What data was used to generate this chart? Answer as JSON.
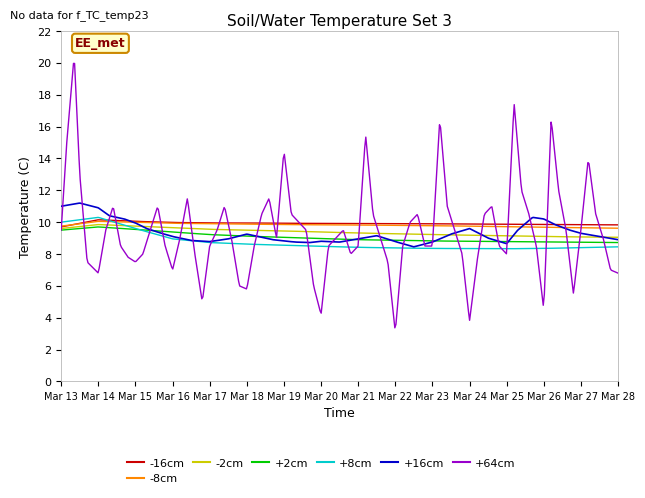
{
  "title": "Soil/Water Temperature Set 3",
  "subtitle": "No data for f_TC_temp23",
  "xlabel": "Time",
  "ylabel": "Temperature (C)",
  "ylim": [
    0,
    22
  ],
  "yticks": [
    0,
    2,
    4,
    6,
    8,
    10,
    12,
    14,
    16,
    18,
    20,
    22
  ],
  "bg_color": "#ffffff",
  "grid_color": "#dddddd",
  "annotation_text": "EE_met",
  "annotation_bg": "#ffffcc",
  "annotation_border": "#cc8800",
  "series_order": [
    "-16cm",
    "-8cm",
    "-2cm",
    "+2cm",
    "+8cm",
    "+16cm",
    "+64cm"
  ],
  "series": {
    "-16cm": {
      "color": "#cc0000",
      "linewidth": 1.0
    },
    "-8cm": {
      "color": "#ff8800",
      "linewidth": 1.0
    },
    "-2cm": {
      "color": "#cccc00",
      "linewidth": 1.0
    },
    "+2cm": {
      "color": "#00cc00",
      "linewidth": 1.0
    },
    "+8cm": {
      "color": "#00cccc",
      "linewidth": 1.0
    },
    "+16cm": {
      "color": "#0000cc",
      "linewidth": 1.2
    },
    "+64cm": {
      "color": "#9900cc",
      "linewidth": 1.0
    }
  },
  "x_days": [
    13,
    14,
    15,
    16,
    17,
    18,
    19,
    20,
    21,
    22,
    23,
    24,
    25,
    26,
    27,
    28
  ],
  "s16neg": [
    9.7,
    10.15,
    10.05,
    9.98,
    9.95,
    9.95,
    9.93,
    9.92,
    9.91,
    9.9,
    9.9,
    9.88,
    9.87,
    9.86,
    9.84,
    9.83
  ],
  "s8neg": [
    9.75,
    10.05,
    10.0,
    9.93,
    9.9,
    9.88,
    9.85,
    9.83,
    9.82,
    9.8,
    9.78,
    9.75,
    9.72,
    9.68,
    9.65,
    9.62
  ],
  "s2neg": [
    9.6,
    9.85,
    9.75,
    9.65,
    9.55,
    9.5,
    9.45,
    9.38,
    9.32,
    9.27,
    9.22,
    9.18,
    9.14,
    9.1,
    9.07,
    9.05
  ],
  "s2pos": [
    9.5,
    9.7,
    9.55,
    9.38,
    9.22,
    9.12,
    9.05,
    8.97,
    8.9,
    8.86,
    8.82,
    8.8,
    8.78,
    8.76,
    8.74,
    8.72
  ],
  "s8pos": [
    10.0,
    10.3,
    9.6,
    8.95,
    8.72,
    8.62,
    8.55,
    8.48,
    8.42,
    8.38,
    8.35,
    8.34,
    8.33,
    8.35,
    8.4,
    8.45
  ],
  "s16pos_nodes": [
    0,
    0.5,
    1,
    1.3,
    1.7,
    2,
    2.3,
    2.7,
    3,
    3.5,
    4,
    4.5,
    5,
    5.3,
    5.7,
    6,
    6.3,
    6.7,
    7,
    7.5,
    8,
    8.5,
    9,
    9.5,
    10,
    10.5,
    11,
    11.5,
    12,
    12.3,
    12.7,
    13,
    13.3,
    13.7,
    14,
    14.5,
    15
  ],
  "s16pos_vals": [
    11.0,
    11.2,
    10.9,
    10.4,
    10.2,
    9.95,
    9.6,
    9.3,
    9.1,
    8.85,
    8.78,
    8.95,
    9.25,
    9.1,
    8.9,
    8.82,
    8.75,
    8.72,
    8.8,
    8.75,
    8.95,
    9.15,
    8.78,
    8.45,
    8.75,
    9.25,
    9.6,
    9.0,
    8.65,
    9.5,
    10.3,
    10.2,
    9.85,
    9.5,
    9.3,
    9.1,
    8.9
  ],
  "s64_nodes": [
    0,
    0.15,
    0.35,
    0.5,
    0.7,
    1.0,
    1.2,
    1.4,
    1.6,
    1.8,
    2.0,
    2.2,
    2.4,
    2.6,
    2.8,
    3.0,
    3.2,
    3.4,
    3.6,
    3.8,
    4.0,
    4.2,
    4.4,
    4.6,
    4.8,
    5.0,
    5.2,
    5.4,
    5.6,
    5.8,
    6.0,
    6.2,
    6.4,
    6.6,
    6.8,
    7.0,
    7.2,
    7.4,
    7.6,
    7.8,
    8.0,
    8.2,
    8.4,
    8.6,
    8.8,
    9.0,
    9.2,
    9.4,
    9.6,
    9.8,
    10.0,
    10.2,
    10.4,
    10.6,
    10.8,
    11.0,
    11.2,
    11.4,
    11.6,
    11.8,
    12.0,
    12.2,
    12.4,
    12.6,
    12.8,
    13.0,
    13.2,
    13.4,
    13.6,
    13.8,
    14.0,
    14.2,
    14.4,
    14.6,
    14.8,
    15.0
  ],
  "s64_vals": [
    9.5,
    15.0,
    20.5,
    13.0,
    7.5,
    6.8,
    9.5,
    11.0,
    8.5,
    7.8,
    7.5,
    8.0,
    9.5,
    11.0,
    8.5,
    7.0,
    9.0,
    11.5,
    8.0,
    5.0,
    8.5,
    9.5,
    11.0,
    8.8,
    6.0,
    5.8,
    8.5,
    10.5,
    11.5,
    9.0,
    14.5,
    10.5,
    10.0,
    9.5,
    6.0,
    4.2,
    8.5,
    9.0,
    9.5,
    8.0,
    8.5,
    15.5,
    10.5,
    9.0,
    7.5,
    3.1,
    8.5,
    10.0,
    10.5,
    8.5,
    8.5,
    16.5,
    11.0,
    9.5,
    8.0,
    3.8,
    7.5,
    10.5,
    11.0,
    8.5,
    8.0,
    17.5,
    12.0,
    10.5,
    8.5,
    4.5,
    16.5,
    12.0,
    9.5,
    5.5,
    9.5,
    14.0,
    10.5,
    9.0,
    7.0,
    6.8
  ]
}
